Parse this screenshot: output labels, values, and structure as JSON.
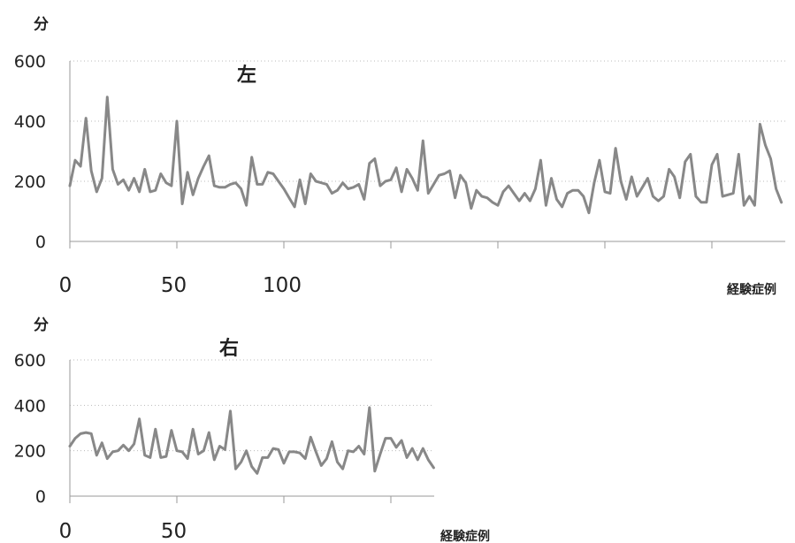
{
  "chart_data": [
    {
      "type": "line",
      "title": "左",
      "ylabel": "分",
      "xlabel": "経験症例",
      "ylim": [
        0,
        600
      ],
      "y_ticks": [
        0,
        200,
        400,
        600
      ],
      "x_ticks": [
        0,
        50,
        100
      ],
      "series_color": "#888888",
      "values": [
        185,
        270,
        250,
        410,
        235,
        165,
        210,
        480,
        240,
        190,
        205,
        170,
        210,
        165,
        240,
        165,
        170,
        225,
        195,
        185,
        400,
        125,
        230,
        155,
        210,
        250,
        285,
        185,
        180,
        180,
        190,
        195,
        175,
        120,
        280,
        190,
        190,
        230,
        225,
        200,
        175,
        145,
        115,
        205,
        125,
        225,
        200,
        195,
        190,
        160,
        170,
        195,
        175,
        180,
        190,
        140,
        260,
        275,
        185,
        200,
        205,
        245,
        165,
        240,
        210,
        170,
        335,
        160,
        190,
        220,
        225,
        235,
        145,
        220,
        195,
        110,
        170,
        150,
        145,
        130,
        120,
        165,
        185,
        160,
        135,
        160,
        135,
        175,
        270,
        120,
        210,
        140,
        115,
        160,
        170,
        170,
        150,
        95,
        195,
        270,
        165,
        160,
        310,
        200,
        140,
        215,
        150,
        180,
        210,
        150,
        135,
        150,
        240,
        215,
        145,
        265,
        290,
        150,
        130,
        130,
        255,
        290,
        150,
        155,
        160,
        290,
        120,
        150,
        120,
        390,
        320,
        275,
        175,
        130
      ]
    },
    {
      "type": "line",
      "title": "右",
      "ylabel": "分",
      "xlabel": "経験症例",
      "ylim": [
        0,
        600
      ],
      "y_ticks": [
        0,
        200,
        400,
        600
      ],
      "x_ticks": [
        0,
        50
      ],
      "series_color": "#888888",
      "values": [
        220,
        255,
        275,
        280,
        275,
        180,
        235,
        165,
        195,
        200,
        225,
        200,
        230,
        340,
        180,
        170,
        295,
        170,
        175,
        290,
        200,
        195,
        165,
        295,
        185,
        200,
        280,
        160,
        220,
        205,
        375,
        120,
        150,
        200,
        130,
        100,
        170,
        170,
        210,
        205,
        145,
        195,
        195,
        190,
        165,
        260,
        195,
        135,
        165,
        240,
        150,
        120,
        200,
        195,
        220,
        185,
        390,
        110,
        185,
        255,
        255,
        215,
        245,
        170,
        210,
        160,
        210,
        160,
        125
      ]
    }
  ]
}
